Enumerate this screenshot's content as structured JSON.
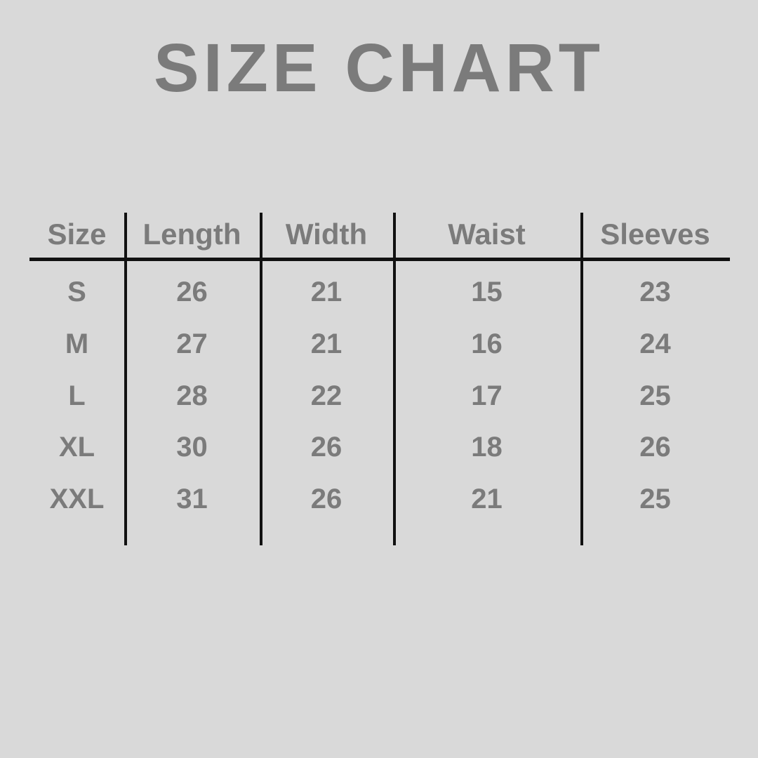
{
  "title": "SIZE CHART",
  "colors": {
    "background": "#d9d9d9",
    "text": "#7b7b7b",
    "line": "#111111"
  },
  "chart_data": {
    "type": "table",
    "title": "SIZE CHART",
    "columns": [
      "Size",
      "Length",
      "Width",
      "Waist",
      "Sleeves"
    ],
    "rows": [
      [
        "S",
        "26",
        "21",
        "15",
        "23"
      ],
      [
        "M",
        "27",
        "21",
        "16",
        "24"
      ],
      [
        "L",
        "28",
        "22",
        "17",
        "25"
      ],
      [
        "XL",
        "30",
        "26",
        "18",
        "26"
      ],
      [
        "XXL",
        "31",
        "26",
        "21",
        "25"
      ]
    ]
  }
}
